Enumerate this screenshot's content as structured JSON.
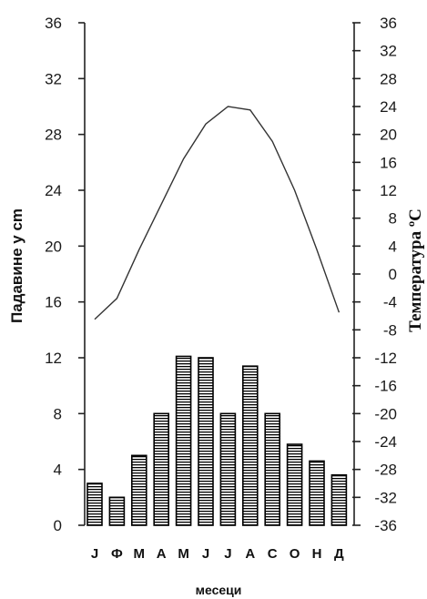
{
  "chart_data": {
    "type": "bar",
    "categories": [
      "J",
      "Ф",
      "M",
      "A",
      "M",
      "J",
      "J",
      "A",
      "C",
      "O",
      "H",
      "Д"
    ],
    "series": [
      {
        "type": "bar",
        "axis": "left",
        "values": [
          3,
          2,
          5,
          8,
          12.1,
          12,
          8,
          11.4,
          8,
          5.8,
          4.6,
          3.6
        ]
      },
      {
        "type": "line",
        "axis": "right",
        "values": [
          -6.5,
          -3.5,
          3.5,
          10,
          16.5,
          21.5,
          24,
          23.5,
          19,
          12,
          3.5,
          -5.5
        ]
      }
    ],
    "xlabel": "месеци",
    "ylabel": "Падавине у cm",
    "ylabel_right": "Температура ºC",
    "ylim": [
      0,
      36
    ],
    "ylim_right": [
      -36,
      36
    ],
    "yticks": [
      0,
      4,
      8,
      12,
      16,
      20,
      24,
      28,
      32,
      36
    ],
    "yticks_right": [
      -36,
      -32,
      -28,
      -24,
      -20,
      -16,
      -12,
      -8,
      -4,
      0,
      4,
      8,
      12,
      16,
      20,
      24,
      28,
      32,
      36
    ],
    "grid": false,
    "legend": "none",
    "colors": {
      "bar_fill": "#ffffff",
      "bar_hatch": "#000000",
      "line": "#333333",
      "axis": "#222222"
    }
  }
}
